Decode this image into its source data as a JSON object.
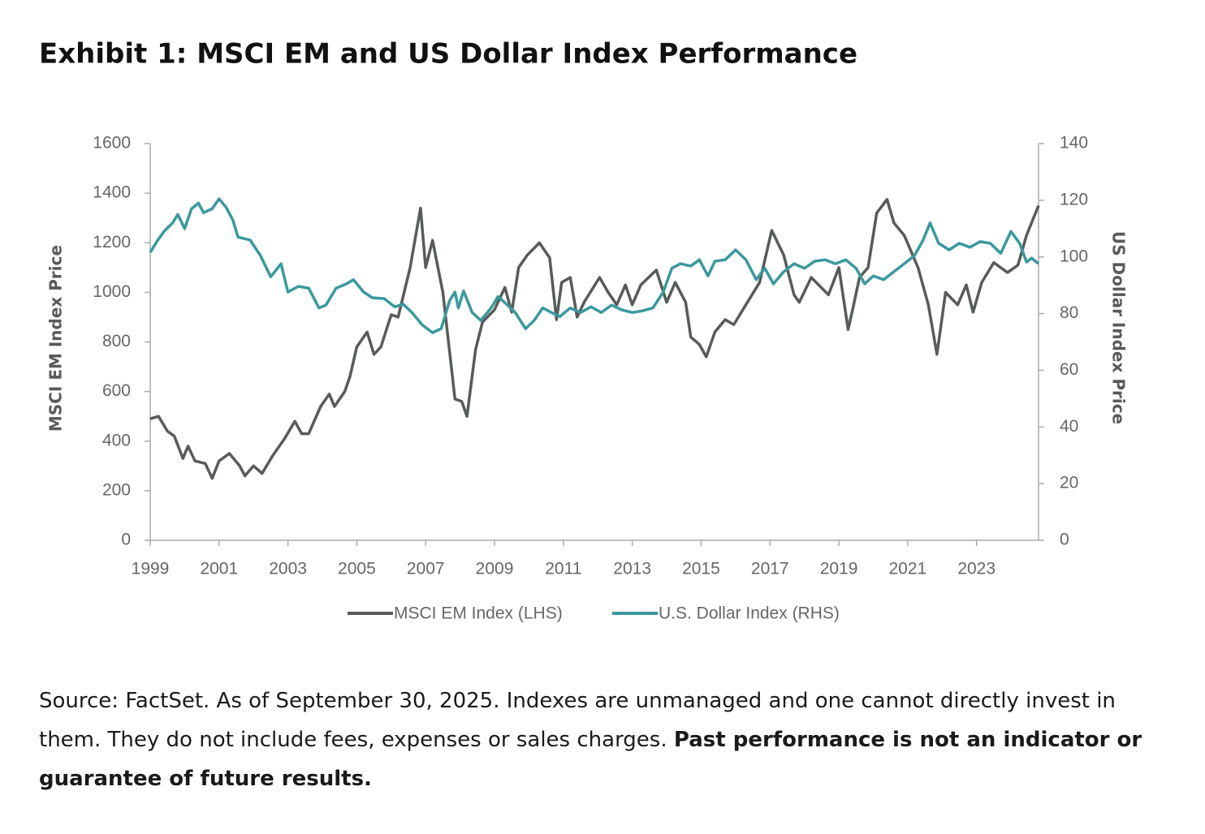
{
  "chart_data": {
    "type": "line",
    "title": "Exhibit 1: MSCI EM and US Dollar Index Performance",
    "ylabel": "MSCI EM Index Price",
    "y2label": "US Dollar Index Price",
    "xlim": [
      1999,
      2024.8
    ],
    "xticks": [
      1999,
      2001,
      2003,
      2005,
      2007,
      2009,
      2011,
      2013,
      2015,
      2017,
      2019,
      2021,
      2023
    ],
    "ylim": [
      0,
      1600
    ],
    "yticks": [
      0,
      200,
      400,
      600,
      800,
      1000,
      1200,
      1400,
      1600
    ],
    "y2lim": [
      0,
      140
    ],
    "y2ticks": [
      0,
      20,
      40,
      60,
      80,
      100,
      120,
      140
    ],
    "legend": "bottom",
    "series": [
      {
        "name": "MSCI EM Index (LHS)",
        "color": "#575b5a",
        "x": [
          1999,
          1999.24,
          1999.5,
          1999.7,
          1999.95,
          2000.1,
          2000.3,
          2000.6,
          2000.8,
          2001.0,
          2001.3,
          2001.6,
          2001.75,
          2002.0,
          2002.25,
          2002.55,
          2002.9,
          2003.2,
          2003.4,
          2003.6,
          2003.95,
          2004.2,
          2004.35,
          2004.65,
          2004.8,
          2005.0,
          2005.3,
          2005.5,
          2005.7,
          2006.0,
          2006.2,
          2006.55,
          2006.85,
          2007.0,
          2007.2,
          2007.5,
          2007.85,
          2008.05,
          2008.2,
          2008.45,
          2008.65,
          2009.0,
          2009.3,
          2009.5,
          2009.7,
          2009.95,
          2010.3,
          2010.6,
          2010.8,
          2010.95,
          2011.2,
          2011.4,
          2011.6,
          2012.05,
          2012.3,
          2012.55,
          2012.8,
          2013.0,
          2013.25,
          2013.7,
          2014.0,
          2014.25,
          2014.55,
          2014.7,
          2014.95,
          2015.15,
          2015.4,
          2015.7,
          2015.95,
          2016.3,
          2016.7,
          2017.05,
          2017.4,
          2017.7,
          2017.85,
          2018.2,
          2018.7,
          2019.0,
          2019.27,
          2019.4,
          2019.6,
          2019.85,
          2020.1,
          2020.4,
          2020.6,
          2020.9,
          2021.3,
          2021.6,
          2021.85,
          2022.1,
          2022.45,
          2022.7,
          2022.9,
          2023.15,
          2023.5,
          2023.9,
          2024.2,
          2024.45,
          2024.8
        ],
        "values": [
          490,
          500,
          440,
          420,
          330,
          380,
          320,
          310,
          250,
          320,
          350,
          300,
          260,
          300,
          270,
          340,
          410,
          480,
          430,
          430,
          540,
          590,
          540,
          600,
          660,
          780,
          840,
          750,
          780,
          910,
          900,
          1100,
          1340,
          1100,
          1210,
          1000,
          570,
          560,
          500,
          770,
          880,
          930,
          1020,
          920,
          1100,
          1150,
          1200,
          1140,
          890,
          1040,
          1060,
          900,
          960,
          1060,
          1000,
          950,
          1030,
          950,
          1030,
          1090,
          960,
          1040,
          960,
          820,
          790,
          740,
          840,
          890,
          870,
          950,
          1040,
          1250,
          1150,
          990,
          960,
          1060,
          990,
          1100,
          850,
          930,
          1060,
          1100,
          1320,
          1375,
          1280,
          1230,
          1100,
          950,
          750,
          1000,
          950,
          1030,
          920,
          1040,
          1120,
          1080,
          1110,
          1230,
          1350
        ]
      },
      {
        "name": "U.S. Dollar Index (RHS)",
        "color": "#3a999d",
        "axis": "y2",
        "x": [
          1999,
          1999.2,
          1999.4,
          1999.65,
          1999.8,
          2000.0,
          2000.2,
          2000.4,
          2000.55,
          2000.8,
          2001.0,
          2001.2,
          2001.4,
          2001.55,
          2001.9,
          2002.2,
          2002.5,
          2002.8,
          2003.0,
          2003.3,
          2003.6,
          2003.9,
          2004.1,
          2004.4,
          2004.7,
          2004.9,
          2005.2,
          2005.45,
          2005.8,
          2006.1,
          2006.35,
          2006.6,
          2006.9,
          2007.2,
          2007.45,
          2007.7,
          2007.85,
          2007.95,
          2008.1,
          2008.35,
          2008.6,
          2008.9,
          2009.1,
          2009.35,
          2009.6,
          2009.9,
          2010.15,
          2010.4,
          2010.65,
          2010.9,
          2011.2,
          2011.5,
          2011.8,
          2012.1,
          2012.4,
          2012.7,
          2013.0,
          2013.3,
          2013.6,
          2013.9,
          2014.15,
          2014.4,
          2014.7,
          2014.95,
          2015.2,
          2015.4,
          2015.7,
          2016.0,
          2016.3,
          2016.6,
          2016.85,
          2017.1,
          2017.4,
          2017.7,
          2018.0,
          2018.3,
          2018.6,
          2018.9,
          2019.2,
          2019.5,
          2019.75,
          2020.0,
          2020.3,
          2020.6,
          2020.9,
          2021.2,
          2021.45,
          2021.65,
          2021.9,
          2022.2,
          2022.5,
          2022.8,
          2023.1,
          2023.4,
          2023.7,
          2024.0,
          2024.25,
          2024.45,
          2024.6,
          2024.8
        ],
        "values": [
          101.6,
          105.6,
          109,
          112,
          115,
          110,
          117,
          119,
          115.6,
          117,
          120.5,
          117.6,
          113,
          107,
          106,
          100.5,
          93,
          97.6,
          87.6,
          89.6,
          89,
          82,
          83,
          89,
          90.5,
          92,
          87.6,
          85.6,
          85.3,
          82.4,
          83.3,
          80.4,
          76,
          73.3,
          74.7,
          84.7,
          87.6,
          82,
          88,
          80.4,
          77.6,
          82,
          86,
          83.3,
          80.4,
          74.7,
          77.6,
          82,
          80.4,
          79,
          82,
          80.4,
          82.4,
          80.4,
          83,
          81.3,
          80.4,
          81,
          82,
          87.6,
          96,
          97.6,
          96.8,
          99,
          93.3,
          98.5,
          99,
          102.5,
          99,
          92,
          96,
          90.5,
          94.8,
          97.6,
          96,
          98.5,
          99,
          97.6,
          99,
          96,
          90.5,
          93.3,
          92,
          94.8,
          97.6,
          100.5,
          106,
          112,
          104.8,
          102.5,
          104.8,
          103.4,
          105.4,
          104.8,
          101.3,
          109,
          104.8,
          98.2,
          99.6,
          97.6
        ]
      }
    ]
  },
  "note": {
    "text": "Source: FactSet. As of September 30, 2025. Indexes are unmanaged and one cannot directly invest in them. They do not include fees, expenses or sales charges. ",
    "bold": "Past performance is not an indicator or guarantee of future results."
  }
}
